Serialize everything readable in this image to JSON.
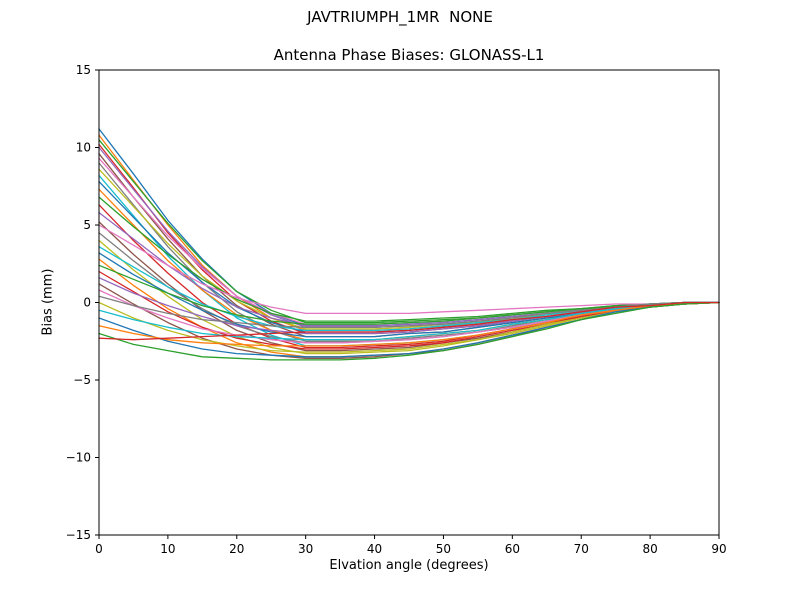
{
  "figure": {
    "suptitle": "JAVTRIUMPH_1MR  NONE",
    "title": "Antenna Phase Biases: GLONASS-L1",
    "xlabel": "Elvation angle (degrees)",
    "ylabel": "Bias (mm)"
  },
  "chart_data": {
    "type": "line",
    "suptitle": "JAVTRIUMPH_1MR  NONE",
    "title": "Antenna Phase Biases: GLONASS-L1",
    "xlabel": "Elvation angle (degrees)",
    "ylabel": "Bias (mm)",
    "xlim": [
      0,
      90
    ],
    "ylim": [
      -15,
      15
    ],
    "x_ticks": [
      0,
      10,
      20,
      30,
      40,
      50,
      60,
      70,
      80,
      90
    ],
    "y_ticks": [
      -15,
      -10,
      -5,
      0,
      5,
      10,
      15
    ],
    "y_tick_labels": [
      "−15",
      "−10",
      "−5",
      "0",
      "5",
      "10",
      "15"
    ],
    "grid": false,
    "legend": "none",
    "frame_color": "#000000",
    "palette": [
      "#1f77b4",
      "#ff7f0e",
      "#2ca02c",
      "#d62728",
      "#9467bd",
      "#8c564b",
      "#e377c2",
      "#7f7f7f",
      "#bcbd22",
      "#17becf"
    ],
    "x": [
      0,
      5,
      10,
      15,
      20,
      25,
      30,
      35,
      40,
      45,
      50,
      55,
      60,
      65,
      70,
      75,
      80,
      85,
      90
    ],
    "series": [
      {
        "values": [
          11.2,
          8.3,
          5.3,
          2.8,
          0.7,
          -0.7,
          -1.5,
          -1.5,
          -1.5,
          -1.4,
          -1.3,
          -1.1,
          -0.9,
          -0.7,
          -0.5,
          -0.3,
          -0.1,
          0,
          0
        ]
      },
      {
        "values": [
          10.8,
          7.9,
          5.0,
          2.4,
          0.4,
          -1.0,
          -1.8,
          -1.8,
          -1.8,
          -1.7,
          -1.5,
          -1.3,
          -1.1,
          -0.8,
          -0.5,
          -0.3,
          -0.1,
          0,
          0
        ]
      },
      {
        "values": [
          10.5,
          7.8,
          5.1,
          2.7,
          0.7,
          -0.5,
          -1.3,
          -1.3,
          -1.3,
          -1.2,
          -1.1,
          -1.0,
          -0.8,
          -0.6,
          -0.4,
          -0.2,
          -0.1,
          0,
          0
        ]
      },
      {
        "values": [
          10.2,
          7.4,
          4.5,
          2.1,
          0.1,
          -1.2,
          -2.0,
          -2.0,
          -2.0,
          -1.9,
          -1.7,
          -1.5,
          -1.2,
          -0.9,
          -0.6,
          -0.4,
          -0.2,
          0,
          0
        ]
      },
      {
        "values": [
          10.0,
          7.3,
          4.6,
          2.3,
          0.4,
          -0.8,
          -1.6,
          -1.6,
          -1.6,
          -1.5,
          -1.4,
          -1.2,
          -1.0,
          -0.7,
          -0.5,
          -0.3,
          -0.1,
          0,
          0
        ]
      },
      {
        "values": [
          9.6,
          6.8,
          4.1,
          1.7,
          -0.2,
          -1.4,
          -2.2,
          -2.2,
          -2.2,
          -2.0,
          -1.9,
          -1.6,
          -1.3,
          -1.0,
          -0.7,
          -0.4,
          -0.2,
          0,
          0
        ]
      },
      {
        "values": [
          9.3,
          6.8,
          4.3,
          2.2,
          0.4,
          -0.7,
          -1.4,
          -1.4,
          -1.4,
          -1.3,
          -1.2,
          -1.0,
          -0.8,
          -0.6,
          -0.4,
          -0.3,
          -0.1,
          0,
          0
        ]
      },
      {
        "values": [
          9.0,
          6.3,
          3.6,
          1.3,
          -0.6,
          -1.8,
          -2.5,
          -2.5,
          -2.5,
          -2.3,
          -2.1,
          -1.9,
          -1.5,
          -1.1,
          -0.8,
          -0.5,
          -0.2,
          -0.1,
          0
        ]
      },
      {
        "values": [
          8.6,
          6.2,
          3.8,
          1.7,
          0.1,
          -1.0,
          -1.7,
          -1.7,
          -1.7,
          -1.6,
          -1.4,
          -1.3,
          -1.0,
          -0.8,
          -0.5,
          -0.3,
          -0.1,
          0,
          0
        ]
      },
      {
        "values": [
          8.2,
          5.6,
          3.0,
          0.8,
          -1.0,
          -2.1,
          -2.8,
          -2.8,
          -2.7,
          -2.6,
          -2.4,
          -2.1,
          -1.7,
          -1.3,
          -0.8,
          -0.5,
          -0.2,
          -0.1,
          0
        ]
      },
      {
        "values": [
          7.8,
          5.5,
          3.2,
          1.3,
          -0.3,
          -1.3,
          -1.9,
          -1.9,
          -1.9,
          -1.8,
          -1.6,
          -1.4,
          -1.1,
          -0.9,
          -0.6,
          -0.3,
          -0.2,
          0,
          0
        ]
      },
      {
        "values": [
          7.3,
          5.0,
          2.7,
          0.8,
          -0.8,
          -1.8,
          -2.4,
          -2.4,
          -2.4,
          -2.2,
          -2.0,
          -1.8,
          -1.4,
          -1.1,
          -0.7,
          -0.4,
          -0.2,
          0,
          0
        ]
      },
      {
        "values": [
          6.8,
          4.9,
          3.1,
          1.5,
          0.2,
          -0.7,
          -1.2,
          -1.2,
          -1.2,
          -1.1,
          -1.0,
          -0.9,
          -0.7,
          -0.5,
          -0.4,
          -0.2,
          -0.1,
          0,
          0
        ]
      },
      {
        "values": [
          6.3,
          4.0,
          1.9,
          0,
          -1.4,
          -2.3,
          -2.9,
          -2.9,
          -2.8,
          -2.7,
          -2.5,
          -2.1,
          -1.7,
          -1.3,
          -0.9,
          -0.5,
          -0.2,
          -0.1,
          0
        ]
      },
      {
        "values": [
          5.8,
          4.1,
          2.4,
          0.9,
          -0.3,
          -1.0,
          -1.5,
          -1.5,
          -1.5,
          -1.4,
          -1.3,
          -1.1,
          -0.9,
          -0.7,
          -0.5,
          -0.3,
          -0.1,
          0,
          0
        ]
      },
      {
        "values": [
          5.2,
          3.1,
          1.2,
          -0.5,
          -1.8,
          -2.6,
          -3.1,
          -3.1,
          -3.0,
          -2.9,
          -2.6,
          -2.3,
          -1.9,
          -1.4,
          -0.9,
          -0.6,
          -0.2,
          -0.1,
          0
        ]
      },
      {
        "values": [
          5.0,
          3.7,
          2.4,
          1.2,
          0.3,
          -0.3,
          -0.7,
          -0.7,
          -0.7,
          -0.7,
          -0.6,
          -0.5,
          -0.4,
          -0.3,
          -0.2,
          -0.1,
          -0.1,
          0,
          0
        ]
      },
      {
        "values": [
          4.5,
          2.7,
          1.0,
          -0.4,
          -1.5,
          -2.2,
          -2.6,
          -2.6,
          -2.5,
          -2.4,
          -2.2,
          -1.9,
          -1.6,
          -1.2,
          -0.8,
          -0.5,
          -0.2,
          -0.1,
          0
        ]
      },
      {
        "values": [
          4.0,
          2.1,
          0.4,
          -1.1,
          -2.2,
          -2.9,
          -3.3,
          -3.3,
          -3.2,
          -3.1,
          -2.8,
          -2.4,
          -2.0,
          -1.5,
          -1.0,
          -0.6,
          -0.3,
          -0.1,
          0
        ]
      },
      {
        "values": [
          3.6,
          2.3,
          1.0,
          -0.1,
          -0.9,
          -1.5,
          -1.8,
          -1.8,
          -1.8,
          -1.7,
          -1.5,
          -1.3,
          -1.1,
          -0.8,
          -0.5,
          -0.3,
          -0.1,
          0,
          0
        ]
      },
      {
        "values": [
          3.2,
          1.8,
          0.6,
          -0.5,
          -1.4,
          -1.9,
          -2.2,
          -2.2,
          -2.2,
          -2.0,
          -1.9,
          -1.6,
          -1.3,
          -1.0,
          -0.7,
          -0.4,
          -0.2,
          0,
          0
        ]
      },
      {
        "values": [
          2.8,
          1.1,
          -0.4,
          -1.6,
          -2.6,
          -3.2,
          -3.5,
          -3.5,
          -3.4,
          -3.3,
          -3.0,
          -2.6,
          -2.1,
          -1.6,
          -1.1,
          -0.6,
          -0.3,
          -0.1,
          0
        ]
      },
      {
        "values": [
          2.4,
          1.5,
          0.6,
          -0.2,
          -0.8,
          -1.2,
          -1.4,
          -1.4,
          -1.4,
          -1.3,
          -1.2,
          -1.0,
          -0.8,
          -0.6,
          -0.4,
          -0.3,
          -0.1,
          0,
          0
        ]
      },
      {
        "values": [
          2.0,
          0.7,
          -0.6,
          -1.6,
          -2.3,
          -2.7,
          -3.0,
          -3.0,
          -2.9,
          -2.8,
          -2.6,
          -2.2,
          -1.8,
          -1.4,
          -0.9,
          -0.5,
          -0.2,
          -0.1,
          0
        ]
      },
      {
        "values": [
          1.6,
          0.6,
          -0.2,
          -0.9,
          -1.5,
          -1.8,
          -2.0,
          -2.0,
          -2.0,
          -1.9,
          -1.7,
          -1.5,
          -1.2,
          -0.9,
          -0.6,
          -0.4,
          -0.2,
          0,
          0
        ]
      },
      {
        "values": [
          1.2,
          -0.1,
          -1.3,
          -2.3,
          -3.0,
          -3.4,
          -3.6,
          -3.6,
          -3.5,
          -3.3,
          -3.1,
          -2.7,
          -2.2,
          -1.6,
          -1.1,
          -0.6,
          -0.3,
          -0.1,
          0
        ]
      },
      {
        "values": [
          0.8,
          -0.2,
          -1.0,
          -1.7,
          -2.1,
          -2.4,
          -2.6,
          -2.6,
          -2.5,
          -2.4,
          -2.2,
          -1.9,
          -1.6,
          -1.2,
          -0.8,
          -0.5,
          -0.2,
          -0.1,
          0
        ]
      },
      {
        "values": [
          0.4,
          -0.2,
          -0.7,
          -1.1,
          -1.3,
          -1.5,
          -1.6,
          -1.6,
          -1.6,
          -1.5,
          -1.4,
          -1.2,
          -1.0,
          -0.7,
          -0.5,
          -0.3,
          -0.1,
          0,
          0
        ]
      },
      {
        "values": [
          0,
          -1.0,
          -1.8,
          -2.4,
          -2.8,
          -3.1,
          -3.2,
          -3.2,
          -3.1,
          -3.0,
          -2.7,
          -2.4,
          -1.9,
          -1.4,
          -1.0,
          -0.6,
          -0.3,
          -0.1,
          0
        ]
      },
      {
        "values": [
          -0.5,
          -1.1,
          -1.6,
          -2.0,
          -2.2,
          -2.3,
          -2.4,
          -2.4,
          -2.4,
          -2.2,
          -2.0,
          -1.8,
          -1.4,
          -1.1,
          -0.7,
          -0.4,
          -0.2,
          0,
          0
        ]
      },
      {
        "values": [
          -1.0,
          -1.8,
          -2.5,
          -3.0,
          -3.3,
          -3.4,
          -3.5,
          -3.5,
          -3.4,
          -3.3,
          -3.0,
          -2.6,
          -2.1,
          -1.6,
          -1.1,
          -0.6,
          -0.3,
          -0.1,
          0
        ]
      },
      {
        "values": [
          -1.5,
          -2.0,
          -2.4,
          -2.6,
          -2.7,
          -2.8,
          -2.8,
          -2.8,
          -2.7,
          -2.6,
          -2.4,
          -2.1,
          -1.7,
          -1.3,
          -0.8,
          -0.5,
          -0.2,
          -0.1,
          0
        ]
      },
      {
        "values": [
          -2.0,
          -2.7,
          -3.1,
          -3.5,
          -3.6,
          -3.7,
          -3.7,
          -3.7,
          -3.6,
          -3.4,
          -3.1,
          -2.7,
          -2.2,
          -1.7,
          -1.1,
          -0.7,
          -0.3,
          -0.1,
          0
        ]
      },
      {
        "values": [
          -2.3,
          -2.4,
          -2.3,
          -2.2,
          -2.1,
          -2.0,
          -1.9,
          -1.9,
          -1.9,
          -1.8,
          -1.6,
          -1.4,
          -1.1,
          -0.9,
          -0.6,
          -0.3,
          -0.2,
          0,
          0
        ]
      }
    ]
  }
}
